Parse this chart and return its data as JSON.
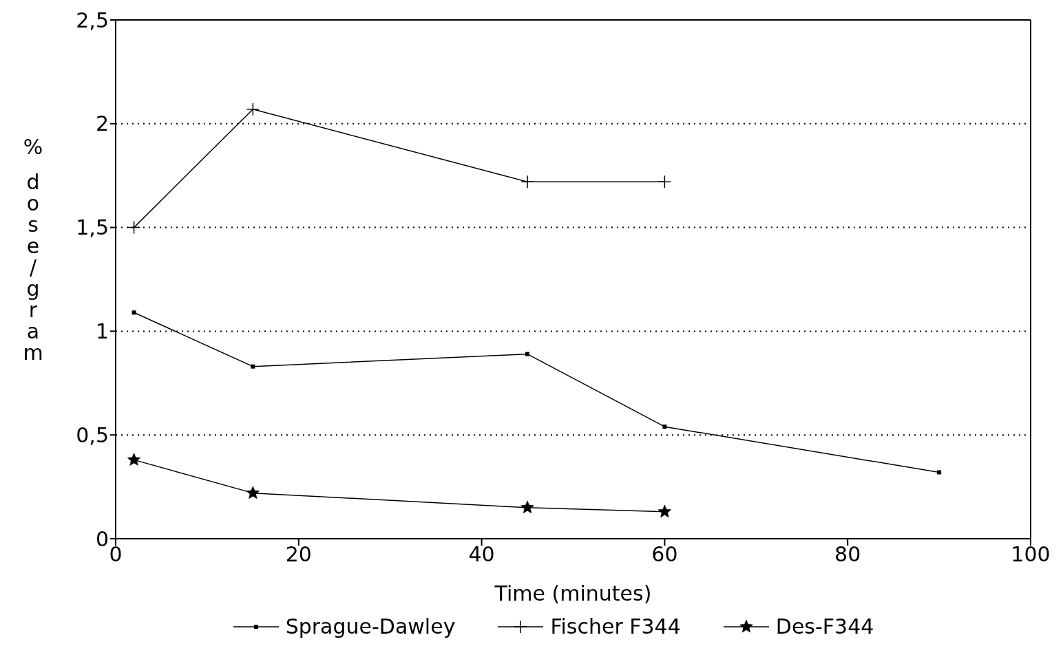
{
  "chart_data": {
    "type": "line",
    "xlabel": "Time (minutes)",
    "ylabel": "% dose/gram",
    "series": [
      {
        "name": "Sprague-Dawley",
        "color": "#000000",
        "marker": "square",
        "x": [
          2,
          15,
          45,
          60,
          90
        ],
        "values": [
          1.09,
          0.83,
          0.89,
          0.54,
          0.32
        ]
      },
      {
        "name": "Fischer F344",
        "color": "#000000",
        "marker": "cross",
        "x": [
          2,
          15,
          45,
          60
        ],
        "values": [
          1.5,
          2.07,
          1.72,
          1.72
        ]
      },
      {
        "name": "Des-F344",
        "color": "#000000",
        "marker": "star",
        "x": [
          2,
          15,
          45,
          60
        ],
        "values": [
          0.38,
          0.22,
          0.15,
          0.13
        ]
      }
    ],
    "xlim": [
      0,
      100
    ],
    "xticks": [
      0,
      20,
      40,
      60,
      80,
      100
    ],
    "ylim": [
      0,
      2.5
    ],
    "yticks": [
      0,
      {
        "value": 0.5,
        "label": "0,5"
      },
      1,
      {
        "value": 1.5,
        "label": "1,5"
      },
      2,
      {
        "value": 2.5,
        "label": "2,5"
      }
    ],
    "grid": "y",
    "legend": "bottom",
    "line_style": "solid"
  }
}
